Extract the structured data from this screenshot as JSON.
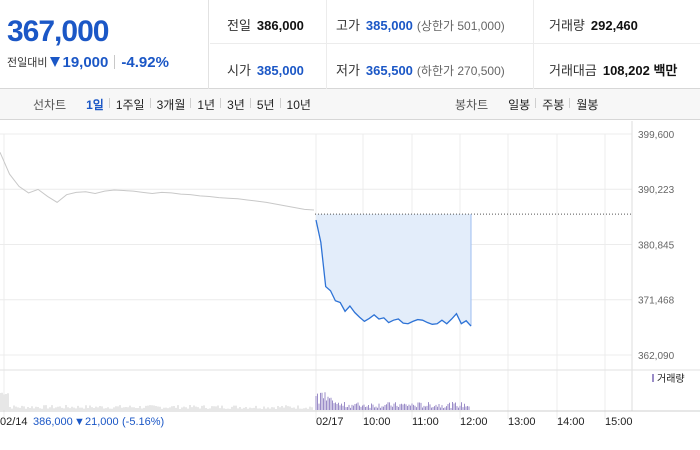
{
  "quote": {
    "current_price": "367,000",
    "change_label": "전일대비",
    "change_amount": "19,000",
    "change_percent": "-4.92%",
    "stats": {
      "prev_close": {
        "label": "전일",
        "value": "386,000"
      },
      "high": {
        "label": "고가",
        "value": "385,000",
        "sub": "(상한가 501,000)"
      },
      "volume": {
        "label": "거래량",
        "value": "292,460"
      },
      "open": {
        "label": "시가",
        "value": "385,000"
      },
      "low": {
        "label": "저가",
        "value": "365,500",
        "sub": "(하한가 270,500)"
      },
      "trade_value": {
        "label": "거래대금",
        "value": "108,202",
        "unit": "백만"
      }
    },
    "colors": {
      "down": "#1b57c6"
    }
  },
  "nav": {
    "line_chart_title": "선차트",
    "line_periods": [
      "1일",
      "1주일",
      "3개월",
      "1년",
      "3년",
      "5년",
      "10년"
    ],
    "active_period": "1일",
    "candle_chart_title": "봉차트",
    "candle_periods": [
      "일봉",
      "주봉",
      "월봉"
    ]
  },
  "chart_data": {
    "type": "line",
    "y_ticks": [
      "399,600",
      "390,223",
      "380,845",
      "371,468",
      "362,090"
    ],
    "ylim": [
      362090,
      399600
    ],
    "x_ticks": [
      "02/17",
      "10:00",
      "11:00",
      "12:00",
      "13:00",
      "14:00",
      "15:00"
    ],
    "prev_day_label": "02/14",
    "prev_day_close": "386,000",
    "prev_day_change": "21,000",
    "prev_day_change_pct": "(-5.16%)",
    "volume_legend": "거래량",
    "prev_close_ref": 386000,
    "series": [
      {
        "role": "previous-day",
        "color": "#c8c8c8",
        "values": [
          396500,
          392800,
          390700,
          389600,
          390200,
          389000,
          388000,
          389300,
          389700,
          389800,
          389500,
          389900,
          390100,
          390000,
          389900,
          389700,
          389500,
          389700,
          389600,
          389400,
          389300,
          389100,
          389000,
          388800,
          388700,
          388600,
          388400,
          388200,
          388000,
          387700,
          387400,
          387100,
          386800,
          386700
        ]
      },
      {
        "role": "today",
        "color": "#2e73d6",
        "x_start": "09:00",
        "x_step_minutes": 5,
        "values": [
          385000,
          381200,
          373700,
          373000,
          371300,
          371000,
          369500,
          370400,
          369300,
          368500,
          367800,
          368300,
          368900,
          368200,
          368400,
          367600,
          368000,
          368200,
          367500,
          367400,
          367800,
          368100,
          368000,
          367600,
          367300,
          367400,
          368000,
          367400,
          368200,
          369100,
          367400,
          367900,
          367000
        ]
      }
    ]
  }
}
